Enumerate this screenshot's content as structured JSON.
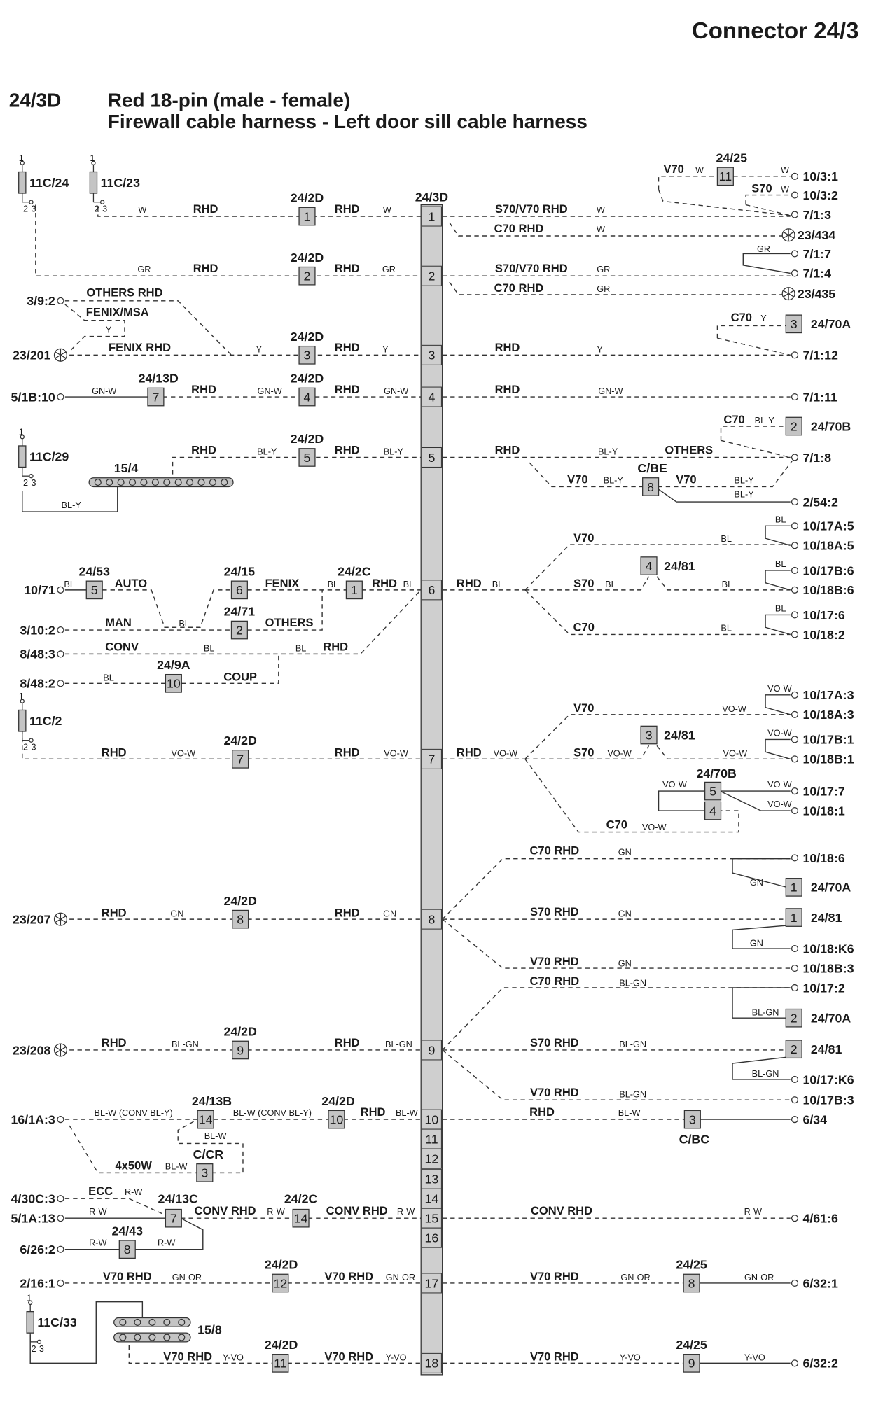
{
  "header": {
    "title": "Connector 24/3",
    "code": "24/3D",
    "line1": "Red 18-pin (male - female)",
    "line2": "Firewall cable harness - Left door sill cable harness"
  },
  "connector": {
    "name": "24/3D",
    "pins": [
      "1",
      "2",
      "3",
      "4",
      "5",
      "6",
      "7",
      "8",
      "9",
      "10",
      "11",
      "12",
      "13",
      "14",
      "15",
      "16",
      "17",
      "18"
    ]
  },
  "fuse_pin_labels": [
    "1",
    "2",
    "3"
  ],
  "fuses": [
    "11C/24",
    "11C/23",
    "11C/29",
    "11C/2",
    "11C/33"
  ],
  "busbars": [
    "15/4",
    "15/8"
  ],
  "terminals": [
    "10/3:1",
    "10/3:2",
    "7/1:3",
    "23/434",
    "7/1:7",
    "7/1:4",
    "23/435",
    "7/1:12",
    "7/1:11",
    "7/1:8",
    "2/54:2",
    "10/17A:5",
    "10/18A:5",
    "10/17B:6",
    "10/18B:6",
    "10/17:6",
    "10/18:2",
    "10/17A:3",
    "10/18A:3",
    "10/17B:1",
    "10/18B:1",
    "10/17:7",
    "10/18:1",
    "10/18:6",
    "10/18:K6",
    "10/18B:3",
    "10/17:2",
    "10/17:K6",
    "10/17B:3",
    "6/34",
    "4/61:6",
    "6/32:1",
    "6/32:2",
    "3/9:2",
    "23/201",
    "5/1B:10",
    "10/71",
    "3/10:2",
    "8/48:3",
    "8/48:2",
    "23/207",
    "23/208",
    "16/1A:3",
    "4/30C:3",
    "5/1A:13",
    "6/26:2",
    "2/16:1"
  ],
  "boxes": [
    {
      "pin": "11",
      "component": "24/25"
    },
    {
      "pin": "1",
      "component": "24/2D"
    },
    {
      "pin": "2",
      "component": "24/2D"
    },
    {
      "pin": "3",
      "component": "24/2D"
    },
    {
      "pin": "4",
      "component": "24/2D"
    },
    {
      "pin": "7",
      "component": "24/13D"
    },
    {
      "pin": "5",
      "component": "24/2D"
    },
    {
      "pin": "3",
      "component": "24/70A"
    },
    {
      "pin": "2",
      "component": "24/70B"
    },
    {
      "pin": "8",
      "component": "C/BE"
    },
    {
      "pin": "5",
      "component": "24/53"
    },
    {
      "pin": "6",
      "component": "24/15"
    },
    {
      "pin": "1",
      "component": "24/2C"
    },
    {
      "pin": "2",
      "component": "24/71"
    },
    {
      "pin": "10",
      "component": "24/9A"
    },
    {
      "pin": "4",
      "component": "24/81"
    },
    {
      "pin": "7",
      "component": "24/2D"
    },
    {
      "pin": "3",
      "component": "24/81"
    },
    {
      "pin": "5",
      "component": "24/70B"
    },
    {
      "pin": "4",
      "component": ""
    },
    {
      "pin": "8",
      "component": "24/2D"
    },
    {
      "pin": "1",
      "component": "24/70A"
    },
    {
      "pin": "1",
      "component": "24/81"
    },
    {
      "pin": "9",
      "component": "24/2D"
    },
    {
      "pin": "2",
      "component": "24/70A"
    },
    {
      "pin": "2",
      "component": "24/81"
    },
    {
      "pin": "14",
      "component": "24/13B"
    },
    {
      "pin": "10",
      "component": "24/2D"
    },
    {
      "pin": "3",
      "component": "C/CR"
    },
    {
      "pin": "3",
      "component": "C/BC"
    },
    {
      "pin": "7",
      "component": "24/13C"
    },
    {
      "pin": "14",
      "component": "24/2C"
    },
    {
      "pin": "8",
      "component": "24/43"
    },
    {
      "pin": "12",
      "component": "24/2D"
    },
    {
      "pin": "8",
      "component": "24/25"
    },
    {
      "pin": "11",
      "component": "24/2D"
    },
    {
      "pin": "9",
      "component": "24/25"
    }
  ],
  "labels": [
    "W",
    "RHD",
    "RHD",
    "W",
    "S70/V70 RHD",
    "W",
    "C70 RHD",
    "W",
    "V70",
    "W",
    "S70",
    "W",
    "W",
    "GR",
    "RHD",
    "RHD",
    "GR",
    "S70/V70 RHD",
    "GR",
    "C70 RHD",
    "GR",
    "GR",
    "OTHERS RHD",
    "FENIX/MSA",
    "Y",
    "FENIX RHD",
    "Y",
    "RHD",
    "Y",
    "RHD",
    "Y",
    "C70",
    "Y",
    "GN-W",
    "RHD",
    "GN-W",
    "RHD",
    "GN-W",
    "RHD",
    "GN-W",
    "RHD",
    "BL-Y",
    "RHD",
    "BL-Y",
    "RHD",
    "BL-Y",
    "OTHERS",
    "C70",
    "BL-Y",
    "V70",
    "BL-Y",
    "V70",
    "BL-Y",
    "BL-Y",
    "BL-Y",
    "BL",
    "AUTO",
    "FENIX",
    "BL",
    "RHD",
    "BL",
    "MAN",
    "BL",
    "OTHERS",
    "CONV",
    "BL",
    "BL",
    "RHD",
    "BL",
    "COUP",
    "RHD",
    "BL",
    "V70",
    "BL",
    "S70",
    "BL",
    "BL",
    "C70",
    "BL",
    "BL",
    "BL",
    "BL",
    "RHD",
    "VO-W",
    "RHD",
    "VO-W",
    "RHD",
    "VO-W",
    "V70",
    "VO-W",
    "S70",
    "VO-W",
    "VO-W",
    "VO-W",
    "VO-W",
    "VO-W",
    "VO-W",
    "VO-W",
    "C70",
    "VO-W",
    "RHD",
    "GN",
    "RHD",
    "GN",
    "C70 RHD",
    "GN",
    "S70 RHD",
    "GN",
    "V70 RHD",
    "GN",
    "GN",
    "GN",
    "RHD",
    "BL-GN",
    "RHD",
    "BL-GN",
    "C70 RHD",
    "BL-GN",
    "S70 RHD",
    "BL-GN",
    "V70 RHD",
    "BL-GN",
    "BL-GN",
    "BL-GN",
    "BL-W (CONV BL-Y)",
    "BL-W (CONV BL-Y)",
    "RHD",
    "BL-W",
    "BL-W",
    "4x50W",
    "BL-W",
    "RHD",
    "BL-W",
    "ECC",
    "R-W",
    "R-W",
    "CONV RHD",
    "R-W",
    "CONV RHD",
    "R-W",
    "R-W",
    "R-W",
    "CONV RHD",
    "R-W",
    "V70 RHD",
    "GN-OR",
    "V70 RHD",
    "GN-OR",
    "V70 RHD",
    "GN-OR",
    "GN-OR",
    "V70 RHD",
    "Y-VO",
    "V70 RHD",
    "Y-VO",
    "V70 RHD",
    "Y-VO",
    "Y-VO"
  ],
  "colors": {
    "line": "#333333",
    "box_fill": "#c4c4c4",
    "connector_fill": "#cfcfcf",
    "text": "#1a1a1a"
  },
  "icons": {
    "ground": "ground-star-icon",
    "terminal": "terminal-circle-icon",
    "fuse": "fuse-icon",
    "busbar": "busbar-icon"
  }
}
